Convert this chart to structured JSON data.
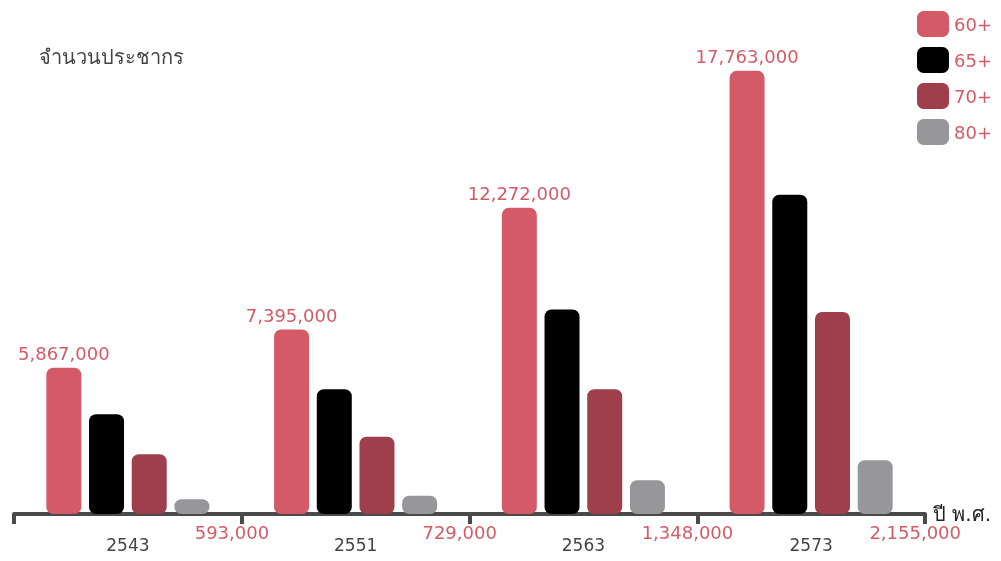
{
  "chart_data": {
    "type": "bar",
    "ylabel": "จำนวนประชากร",
    "xlabel": "ปี พ.ศ.",
    "categories": [
      "2543",
      "2551",
      "2563",
      "2573"
    ],
    "series": [
      {
        "name": "60+",
        "color": "#d45a68",
        "values": [
          5867000,
          7395000,
          12272000,
          17763000
        ],
        "value_labels": [
          "5,867,000",
          "7,395,000",
          "12,272,000",
          "17,763,000"
        ]
      },
      {
        "name": "65+",
        "color": "#000000",
        "values": [
          4000000,
          5000000,
          8200000,
          12800000
        ]
      },
      {
        "name": "70+",
        "color": "#9e3f4b",
        "values": [
          2400000,
          3100000,
          5000000,
          8100000
        ]
      },
      {
        "name": "80+",
        "color": "#97979b",
        "values": [
          593000,
          729000,
          1348000,
          2155000
        ],
        "value_labels": [
          "593,000",
          "729,000",
          "1,348,000",
          "2,155,000"
        ]
      }
    ],
    "legend": "top right",
    "grid": false
  }
}
